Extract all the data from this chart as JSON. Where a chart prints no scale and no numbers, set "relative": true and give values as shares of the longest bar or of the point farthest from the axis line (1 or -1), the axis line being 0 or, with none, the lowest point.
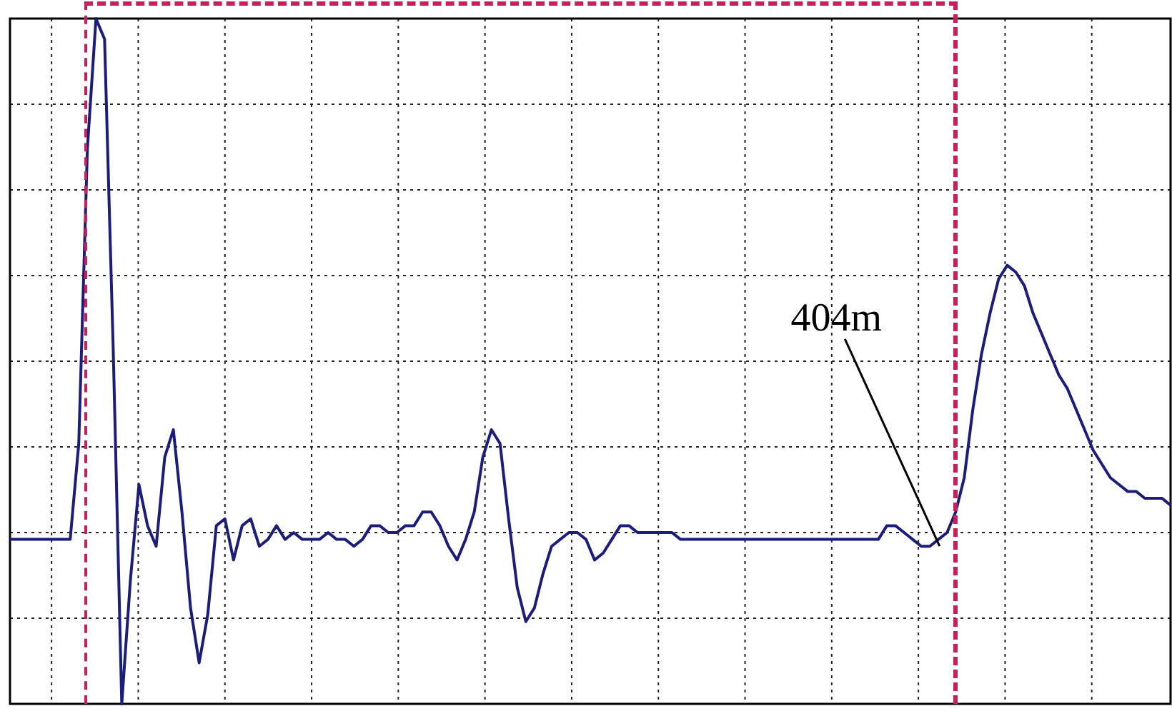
{
  "chart_data": {
    "type": "line",
    "relative": true,
    "grid": true,
    "marker": "none",
    "line_style": "solid",
    "legend": false,
    "categories": [
      null,
      null,
      null,
      null,
      null,
      null,
      null,
      null,
      null,
      null,
      null,
      null,
      null,
      null,
      null,
      null,
      null,
      null,
      null,
      null,
      null,
      null,
      null,
      null,
      null,
      null,
      null,
      null,
      null,
      null,
      null,
      null,
      null,
      null,
      null,
      null,
      null,
      null,
      null,
      null,
      null,
      null,
      null,
      null,
      null,
      null,
      null,
      null,
      null,
      null,
      null,
      null,
      null,
      null,
      null,
      null,
      null,
      null,
      null,
      null,
      null,
      null,
      null,
      null,
      null,
      null,
      null,
      null,
      null,
      null,
      null,
      null,
      null,
      null,
      null,
      null,
      null,
      null,
      null,
      null,
      null,
      null,
      null,
      null,
      null,
      null,
      null,
      null,
      null,
      null,
      null,
      null,
      null,
      null,
      null,
      null,
      null,
      null,
      null,
      null,
      null,
      null,
      null,
      null,
      null,
      null,
      null,
      null,
      null,
      null,
      null,
      null,
      null,
      null,
      null,
      null,
      null,
      null,
      null,
      null,
      null,
      null,
      null,
      null,
      null,
      null,
      null,
      null,
      null,
      null,
      null,
      null,
      null,
      null,
      null,
      null
    ],
    "series": [
      {
        "color": "#1c1c7a",
        "values": [
          0.24,
          0.24,
          0.24,
          0.24,
          0.24,
          0.24,
          0.24,
          0.24,
          0.38,
          0.81,
          1,
          0.97,
          0.52,
          0,
          0.18,
          0.32,
          0.26,
          0.23,
          0.36,
          0.4,
          0.28,
          0.14,
          0.06,
          0.13,
          0.26,
          0.27,
          0.21,
          0.26,
          0.27,
          0.23,
          0.24,
          0.26,
          0.24,
          0.25,
          0.24,
          0.24,
          0.24,
          0.25,
          0.24,
          0.24,
          0.23,
          0.24,
          0.26,
          0.26,
          0.25,
          0.25,
          0.26,
          0.26,
          0.28,
          0.28,
          0.26,
          0.23,
          0.21,
          0.24,
          0.28,
          0.36,
          0.4,
          0.38,
          0.27,
          0.17,
          0.12,
          0.14,
          0.19,
          0.23,
          0.24,
          0.25,
          0.25,
          0.24,
          0.21,
          0.22,
          0.24,
          0.26,
          0.26,
          0.25,
          0.25,
          0.25,
          0.25,
          0.25,
          0.24,
          0.24,
          0.24,
          0.24,
          0.24,
          0.24,
          0.24,
          0.24,
          0.24,
          0.24,
          0.24,
          0.24,
          0.24,
          0.24,
          0.24,
          0.24,
          0.24,
          0.24,
          0.24,
          0.24,
          0.24,
          0.24,
          0.24,
          0.24,
          0.26,
          0.26,
          0.25,
          0.24,
          0.23,
          0.23,
          0.24,
          0.25,
          0.28,
          0.33,
          0.43,
          0.51,
          0.57,
          0.62,
          0.64,
          0.63,
          0.61,
          0.57,
          0.54,
          0.51,
          0.48,
          0.46,
          0.43,
          0.4,
          0.37,
          0.35,
          0.33,
          0.32,
          0.31,
          0.31,
          0.3,
          0.3,
          0.3,
          0.29
        ]
      }
    ],
    "annotations": [
      "404m"
    ]
  }
}
